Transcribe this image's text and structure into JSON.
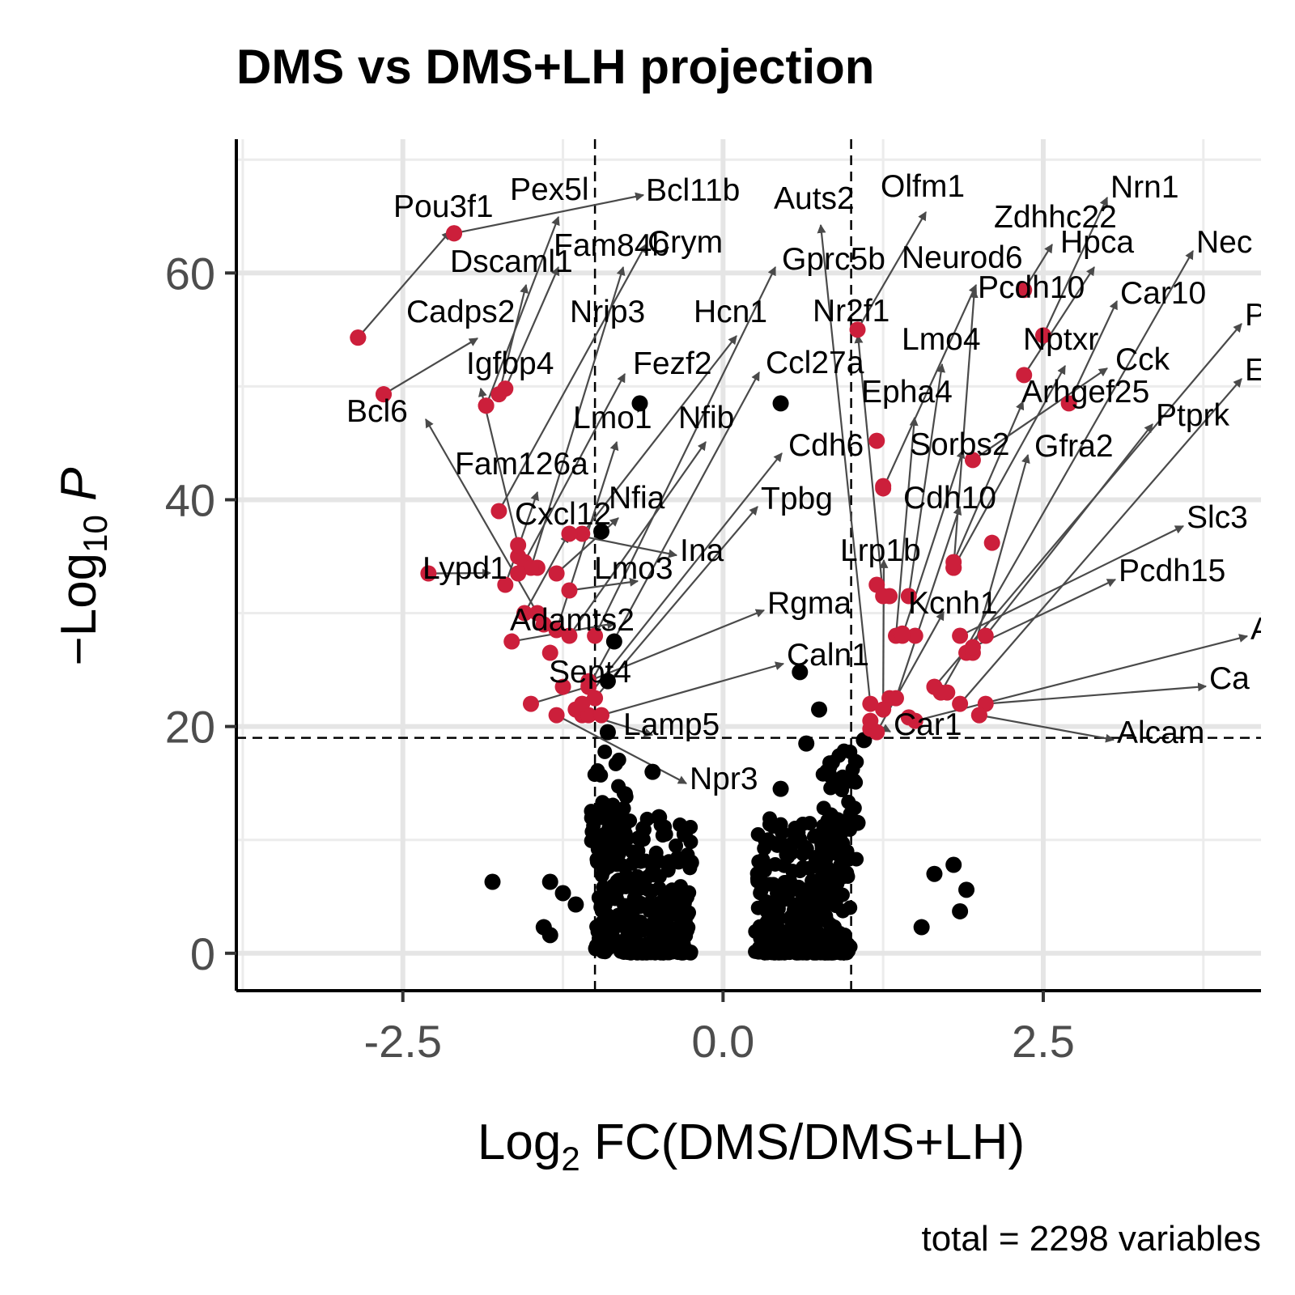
{
  "chart_data": {
    "type": "scatter",
    "title": "DMS vs DMS+LH projection",
    "xlabel": {
      "prefix": "Log",
      "sub": "2",
      "suffix": " FC(DMS/DMS+LH)"
    },
    "ylabel": {
      "prefix": "−Log",
      "sub": "10",
      "suffix": " P"
    },
    "caption": "total = 2298 variables",
    "xlim": [
      -3.8,
      4.2
    ],
    "ylim": [
      -3.3,
      71.8
    ],
    "x_ticks": [
      -2.5,
      0.0,
      2.5
    ],
    "x_tick_labels": [
      "-2.5",
      "0.0",
      "2.5"
    ],
    "y_ticks": [
      0,
      20,
      40,
      60
    ],
    "y_tick_labels": [
      "0",
      "20",
      "40",
      "60"
    ],
    "grid": true,
    "fc_cutoff": 1.0,
    "p_cutoff": 19,
    "colors": {
      "significant": "#cc1f3b",
      "other": "#000000",
      "connector": "#4a4a4a"
    },
    "series": [
      {
        "name": "Labelled",
        "points": [
          {
            "label": "Bcl11b",
            "x": -2.1,
            "y": 63.5
          },
          {
            "label": "Pex5l",
            "x": -1.85,
            "y": 48.3
          },
          {
            "label": "Pou3f1",
            "x": -2.85,
            "y": 54.3
          },
          {
            "label": "Dscaml1",
            "x": -1.75,
            "y": 49.3
          },
          {
            "label": "Cadps2",
            "x": -2.65,
            "y": 49.3
          },
          {
            "label": "Fam84b",
            "x": -1.7,
            "y": 49.8
          },
          {
            "label": "Crym",
            "x": -1.75,
            "y": 39.0
          },
          {
            "label": "Nrip3",
            "x": -1.5,
            "y": 34.0
          },
          {
            "label": "Hcn1",
            "x": -1.1,
            "y": 37.0
          },
          {
            "label": "Fezf2",
            "x": -1.6,
            "y": 33.5
          },
          {
            "label": "Igfbp4",
            "x": -1.6,
            "y": 36.0
          },
          {
            "label": "Bcl6",
            "x": -1.45,
            "y": 30.0
          },
          {
            "label": "Lmo1",
            "x": -1.3,
            "y": 28.5
          },
          {
            "label": "Nfib",
            "x": -1.2,
            "y": 28.0
          },
          {
            "label": "Fam126a",
            "x": -1.7,
            "y": 32.5
          },
          {
            "label": "Nfia",
            "x": -1.3,
            "y": 33.5
          },
          {
            "label": "Cxcl12",
            "x": -1.55,
            "y": 30.0
          },
          {
            "label": "Ina",
            "x": -1.2,
            "y": 37.0
          },
          {
            "label": "Lypd1",
            "x": -2.3,
            "y": 33.5
          },
          {
            "label": "Lmo3",
            "x": -1.2,
            "y": 32.0
          },
          {
            "label": "Adamts2",
            "x": -1.65,
            "y": 27.5
          },
          {
            "label": "Sept4",
            "x": -1.5,
            "y": 22.0
          },
          {
            "label": "Lamp5",
            "x": -1.05,
            "y": 21.0
          },
          {
            "label": "Npr3",
            "x": -1.3,
            "y": 21.0
          },
          {
            "label": "Gprc5b",
            "x": -1.0,
            "y": 28.0
          },
          {
            "label": "Ccl27a",
            "x": -1.05,
            "y": 23.5
          },
          {
            "label": "Cdh6",
            "x": -1.1,
            "y": 22.0
          },
          {
            "label": "Tpbg",
            "x": -1.0,
            "y": 22.5
          },
          {
            "label": "Rgma",
            "x": -1.05,
            "y": 24.0
          },
          {
            "label": "Caln1",
            "x": -0.95,
            "y": 21.0
          },
          {
            "label": "Auts2",
            "x": 1.15,
            "y": 22.0
          },
          {
            "label": "Olfm1",
            "x": 1.05,
            "y": 55.0
          },
          {
            "label": "Nr2f1",
            "x": 1.25,
            "y": 31.5
          },
          {
            "label": "Neurod6",
            "x": 1.25,
            "y": 41.0
          },
          {
            "label": "Zdhhc22",
            "x": 2.35,
            "y": 58.5
          },
          {
            "label": "Nrn1",
            "x": 2.5,
            "y": 54.5
          },
          {
            "label": "Hpca",
            "x": 2.35,
            "y": 51.0
          },
          {
            "label": "Pcdh10",
            "x": 1.8,
            "y": 34.0
          },
          {
            "label": "Car10",
            "x": 2.7,
            "y": 48.5
          },
          {
            "label": "Lmo4",
            "x": 1.45,
            "y": 31.5
          },
          {
            "label": "Nptxr",
            "x": 1.8,
            "y": 34.0
          },
          {
            "label": "Epha4",
            "x": 1.35,
            "y": 28.0
          },
          {
            "label": "Cck",
            "x": 1.95,
            "y": 43.5
          },
          {
            "label": "Arhgef25",
            "x": 1.8,
            "y": 34.5
          },
          {
            "label": "Ptprk",
            "x": 2.05,
            "y": 28.0
          },
          {
            "label": "Sorbs2",
            "x": 1.4,
            "y": 28.0
          },
          {
            "label": "Gfra2",
            "x": 1.95,
            "y": 26.5
          },
          {
            "label": "Cdh10",
            "x": 1.35,
            "y": 22.5
          },
          {
            "label": "Lrp1b",
            "x": 1.25,
            "y": 21.5
          },
          {
            "label": "Kcnh1",
            "x": 1.2,
            "y": 19.5
          },
          {
            "label": "Slc3",
            "x": 1.85,
            "y": 28.0
          },
          {
            "label": "Pcdh15",
            "x": 1.95,
            "y": 27.0
          },
          {
            "label": "Car1",
            "x": 1.15,
            "y": 20.5
          },
          {
            "label": "Ca",
            "x": 2.05,
            "y": 22.0
          },
          {
            "label": "Alcam",
            "x": 2.0,
            "y": 21.0
          },
          {
            "label": "Nec",
            "x": 1.7,
            "y": 23.0
          },
          {
            "label": "P",
            "x": 1.65,
            "y": 23.5
          },
          {
            "label": "E",
            "x": 1.85,
            "y": 22.0
          },
          {
            "label": "A",
            "x": 1.5,
            "y": 20.5
          }
        ]
      },
      {
        "name": "Significant (unlabelled)",
        "points": [
          {
            "x": -2.1,
            "y": 63.5
          },
          {
            "x": -2.85,
            "y": 54.3
          },
          {
            "x": -2.65,
            "y": 49.3
          },
          {
            "x": -1.85,
            "y": 48.3
          },
          {
            "x": -1.6,
            "y": 35.0
          },
          {
            "x": -1.55,
            "y": 34.5
          },
          {
            "x": -1.45,
            "y": 34.0
          },
          {
            "x": -1.35,
            "y": 26.5
          },
          {
            "x": -1.15,
            "y": 21.5
          },
          {
            "x": -1.25,
            "y": 23.5
          },
          {
            "x": -1.4,
            "y": 29.0
          },
          {
            "x": -1.1,
            "y": 21.0
          },
          {
            "x": 1.2,
            "y": 45.2
          },
          {
            "x": 1.25,
            "y": 41.2
          },
          {
            "x": 1.2,
            "y": 32.5
          },
          {
            "x": 1.3,
            "y": 31.5
          },
          {
            "x": 1.4,
            "y": 28.2
          },
          {
            "x": 1.5,
            "y": 28.0
          },
          {
            "x": 1.3,
            "y": 22.5
          },
          {
            "x": 1.15,
            "y": 19.8
          },
          {
            "x": 1.45,
            "y": 20.8
          },
          {
            "x": 1.75,
            "y": 23.0
          },
          {
            "x": 1.65,
            "y": 23.5
          },
          {
            "x": 2.1,
            "y": 36.2
          },
          {
            "x": 1.9,
            "y": 26.5
          },
          {
            "x": 2.0,
            "y": 21.0
          }
        ]
      },
      {
        "name": "Not significant",
        "points": [
          {
            "x": -0.65,
            "y": 48.5
          },
          {
            "x": 0.45,
            "y": 48.5
          },
          {
            "x": -0.95,
            "y": 37.2
          },
          {
            "x": -0.85,
            "y": 27.5
          },
          {
            "x": -0.9,
            "y": 24.0
          },
          {
            "x": 0.6,
            "y": 24.8
          },
          {
            "x": 0.75,
            "y": 21.5
          },
          {
            "x": -0.9,
            "y": 19.5
          },
          {
            "x": 0.65,
            "y": 18.5
          },
          {
            "x": 1.1,
            "y": 18.8
          },
          {
            "x": -1.8,
            "y": 6.3
          },
          {
            "x": -1.35,
            "y": 6.3
          },
          {
            "x": -1.25,
            "y": 5.3
          },
          {
            "x": -1.15,
            "y": 4.3
          },
          {
            "x": -1.4,
            "y": 2.3
          },
          {
            "x": -1.35,
            "y": 1.6
          },
          {
            "x": 1.8,
            "y": 7.8
          },
          {
            "x": 1.65,
            "y": 7.0
          },
          {
            "x": 1.9,
            "y": 5.6
          },
          {
            "x": 1.85,
            "y": 3.7
          },
          {
            "x": 1.55,
            "y": 2.3
          },
          {
            "x": -0.5,
            "y": 12.0
          },
          {
            "x": -0.3,
            "y": 10.5
          },
          {
            "x": -0.25,
            "y": 8.0
          },
          {
            "x": 0.85,
            "y": 12.0
          },
          {
            "x": 0.95,
            "y": 8.5
          },
          {
            "x": 0.45,
            "y": 14.5
          },
          {
            "x": 1.05,
            "y": 11.5
          },
          {
            "x": -0.95,
            "y": 12.5
          },
          {
            "x": -0.55,
            "y": 16.0
          }
        ]
      }
    ]
  }
}
